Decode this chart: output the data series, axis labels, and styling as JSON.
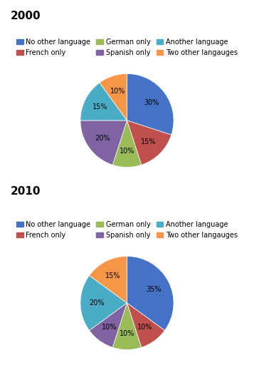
{
  "year2000": {
    "title": "2000",
    "values": [
      30,
      15,
      10,
      20,
      15,
      10
    ],
    "labels": [
      "30%",
      "15%",
      "10%",
      "20%",
      "15%",
      "10%"
    ],
    "colors": [
      "#4472C4",
      "#C0504D",
      "#9BBB59",
      "#8064A2",
      "#4BACC6",
      "#F79646"
    ]
  },
  "year2010": {
    "title": "2010",
    "values": [
      35,
      10,
      10,
      10,
      20,
      15
    ],
    "labels": [
      "35%",
      "10%",
      "10%",
      "10%",
      "20%",
      "15%"
    ],
    "colors": [
      "#4472C4",
      "#C0504D",
      "#9BBB59",
      "#8064A2",
      "#4BACC6",
      "#F79646"
    ]
  },
  "legend_labels": [
    "No other language",
    "French only",
    "German only",
    "Spanish only",
    "Another language",
    "Two other langauges"
  ],
  "legend_colors": [
    "#4472C4",
    "#C0504D",
    "#9BBB59",
    "#8064A2",
    "#4BACC6",
    "#F79646"
  ],
  "bg_color": "#FFFFFF",
  "label_fontsize": 7,
  "title_fontsize": 11,
  "legend_fontsize": 7
}
